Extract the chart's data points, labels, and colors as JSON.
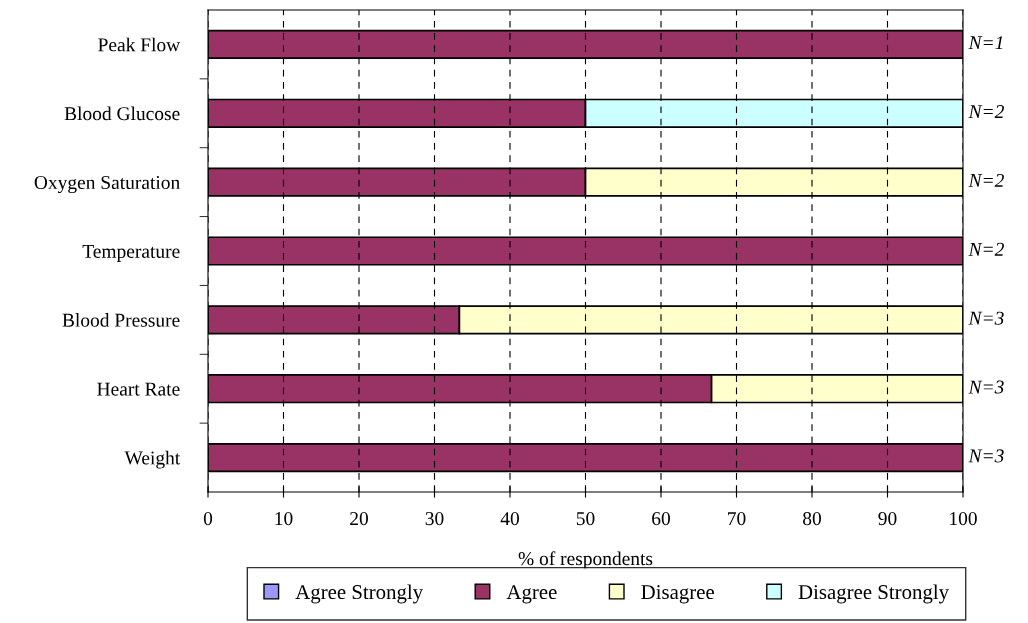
{
  "chart_data": {
    "type": "bar",
    "orientation": "horizontal",
    "stacked": true,
    "categories": [
      "Peak Flow",
      "Blood Glucose",
      "Oxygen Saturation",
      "Temperature",
      "Blood Pressure",
      "Heart Rate",
      "Weight"
    ],
    "series": [
      {
        "name": "Agree Strongly",
        "color": "#9999ff",
        "values": [
          0,
          0,
          0,
          0,
          0,
          0,
          0
        ]
      },
      {
        "name": "Agree",
        "color": "#993366",
        "values": [
          100,
          50,
          50,
          100,
          33.3,
          66.7,
          100
        ]
      },
      {
        "name": "Disagree",
        "color": "#ffffcc",
        "values": [
          0,
          0,
          50,
          0,
          66.7,
          33.3,
          0
        ]
      },
      {
        "name": "Disagree Strongly",
        "color": "#ccffff",
        "values": [
          0,
          50,
          0,
          0,
          0,
          0,
          0
        ]
      }
    ],
    "xlabel": "% of respondents",
    "xlim": [
      0,
      100
    ],
    "xticks": [
      0,
      10,
      20,
      30,
      40,
      50,
      60,
      70,
      80,
      90,
      100
    ],
    "grid": "x",
    "legend": "bottom",
    "annotations": [
      "N=1",
      "N=2",
      "N=2",
      "N=2",
      "N=3",
      "N=3",
      "N=3"
    ]
  }
}
